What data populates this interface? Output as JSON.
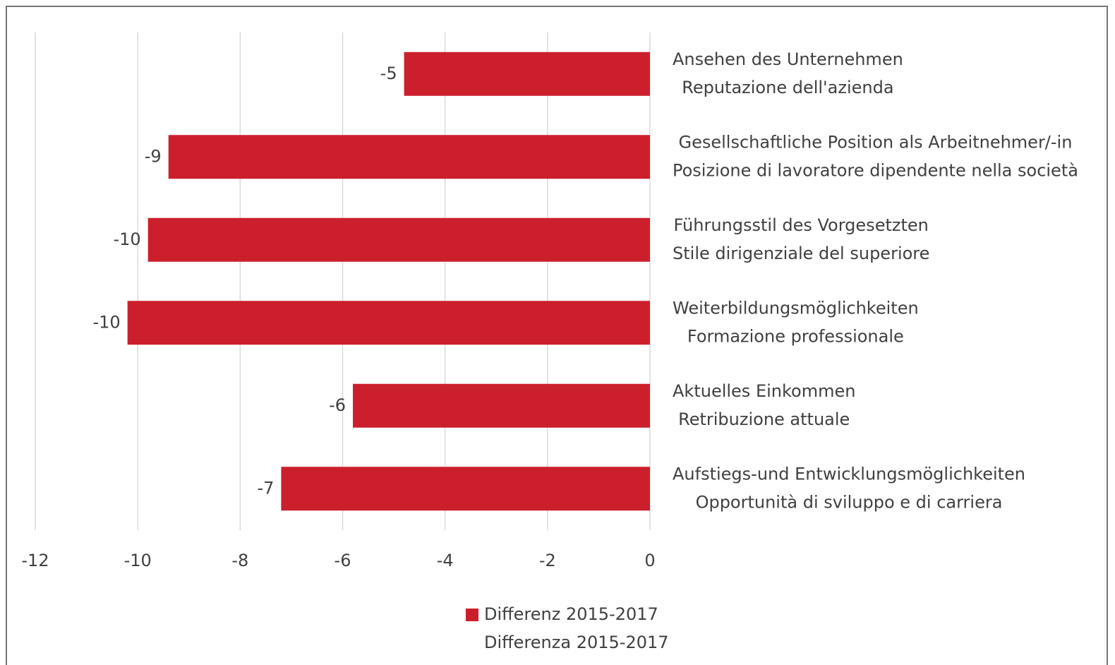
{
  "chart_data": {
    "type": "bar",
    "orientation": "horizontal",
    "categories": [
      [
        "Ansehen des Unternehmen",
        "Reputazione dell'azienda"
      ],
      [
        "Gesellschaftliche Position als Arbeitnehmer/-in",
        "Posizione di lavoratore dipendente nella società"
      ],
      [
        "Führungsstil des Vorgesetzten",
        "Stile dirigenziale del superiore"
      ],
      [
        "Weiterbildungsmöglichkeiten",
        "Formazione professionale"
      ],
      [
        "Aktuelles Einkommen",
        "Retribuzione attuale"
      ],
      [
        "Aufstiegs-und Entwicklungsmöglichkeiten",
        "Opportunità di sviluppo e di carriera"
      ]
    ],
    "series": [
      {
        "name": [
          "Differenz 2015-2017",
          "Differenza 2015-2017"
        ],
        "color": "#cc1f2c",
        "values": [
          -4.8,
          -9.4,
          -9.8,
          -10.2,
          -5.8,
          -7.2
        ],
        "value_labels": [
          "-5",
          "-9",
          "-10",
          "-10",
          "-6",
          "-7"
        ]
      }
    ],
    "xlim": [
      -12,
      0
    ],
    "xticks": [
      -12,
      -10,
      -8,
      -6,
      -4,
      -2,
      0
    ],
    "grid": true,
    "legend": "bottom"
  }
}
